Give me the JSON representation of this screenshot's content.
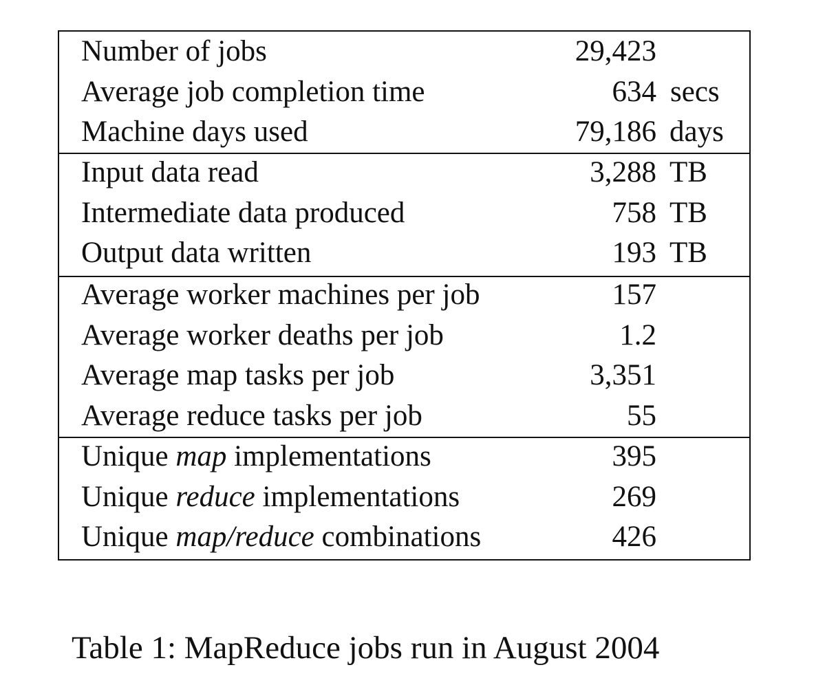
{
  "table": {
    "groups": [
      {
        "rows": [
          {
            "label": "Number of jobs",
            "value": "29,423",
            "unit": ""
          },
          {
            "label": "Average job completion time",
            "value": "634",
            "unit": "secs"
          },
          {
            "label": "Machine days used",
            "value": "79,186",
            "unit": "days"
          }
        ]
      },
      {
        "rows": [
          {
            "label": "Input data read",
            "value": "3,288",
            "unit": "TB"
          },
          {
            "label": "Intermediate data produced",
            "value": "758",
            "unit": "TB"
          },
          {
            "label": "Output data written",
            "value": "193",
            "unit": "TB"
          }
        ]
      },
      {
        "rows": [
          {
            "label": "Average worker machines per job",
            "value": "157",
            "unit": ""
          },
          {
            "label": "Average worker deaths per job",
            "value": "1.2",
            "unit": ""
          },
          {
            "label": "Average map tasks per job",
            "value": "3,351",
            "unit": ""
          },
          {
            "label": "Average reduce tasks per job",
            "value": "55",
            "unit": ""
          }
        ]
      },
      {
        "rows": [
          {
            "label_prefix": "Unique",
            "label_em": "map",
            "label_suffix": "implementations",
            "value": "395",
            "unit": ""
          },
          {
            "label_prefix": "Unique",
            "label_em": "reduce",
            "label_suffix": "implementations",
            "value": "269",
            "unit": ""
          },
          {
            "label_prefix": "Unique",
            "label_em": "map/reduce",
            "label_suffix": "combinations",
            "value": "426",
            "unit": ""
          }
        ]
      }
    ]
  },
  "caption": "Table 1: MapReduce jobs run in August 2004"
}
